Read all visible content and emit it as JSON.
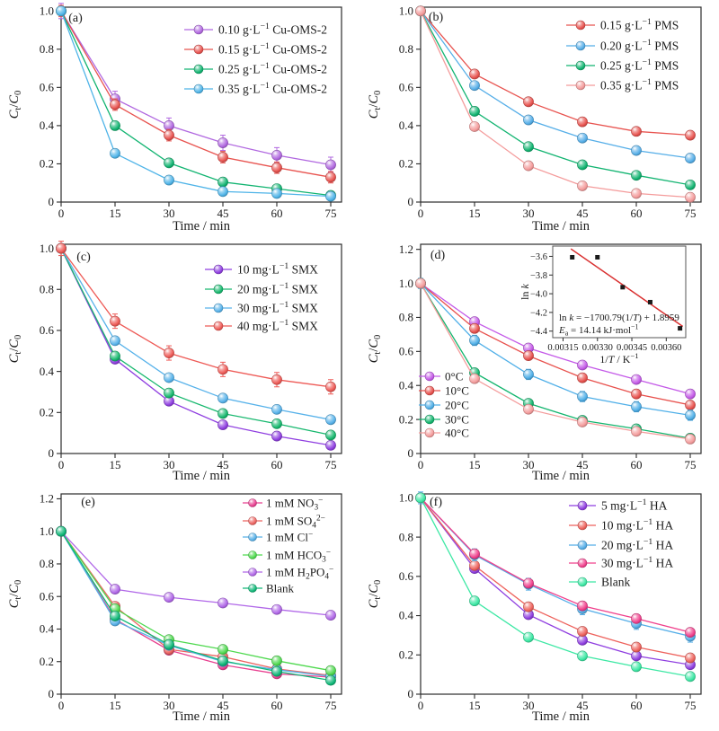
{
  "figure": {
    "background": "#ffffff",
    "axis_color": "#2b2b2b",
    "text_color": "#1a1a1a"
  },
  "chart_data": [
    {
      "type": "line",
      "panel_label": "(a)",
      "xlabel": "Time / min",
      "ylabel": "*C*_{t}/*C*_{0}",
      "x": [
        0,
        15,
        30,
        45,
        60,
        75
      ],
      "xticks": [
        0,
        15,
        30,
        45,
        60,
        75
      ],
      "yticks": [
        0,
        0.2,
        0.4,
        0.6,
        0.8,
        1.0
      ],
      "xlim": [
        0,
        78
      ],
      "ylim": [
        0,
        1.02
      ],
      "grid": false,
      "legend_position": "top-right",
      "series": [
        {
          "name": "0.10 g·L^{−1} Cu-OMS-2",
          "color": "#b168e0",
          "err": 0.04,
          "values": [
            1.0,
            0.54,
            0.4,
            0.31,
            0.245,
            0.195
          ]
        },
        {
          "name": "0.15 g·L^{−1} Cu-OMS-2",
          "color": "#e8534f",
          "err": 0.03,
          "values": [
            1.0,
            0.51,
            0.35,
            0.235,
            0.18,
            0.13
          ]
        },
        {
          "name": "0.25 g·L^{−1} Cu-OMS-2",
          "color": "#12b471",
          "err": 0.015,
          "values": [
            1.0,
            0.4,
            0.205,
            0.105,
            0.07,
            0.035
          ]
        },
        {
          "name": "0.35 g·L^{−1} Cu-OMS-2",
          "color": "#4fb4e8",
          "err": 0.015,
          "values": [
            1.0,
            0.255,
            0.115,
            0.055,
            0.045,
            0.03
          ]
        }
      ]
    },
    {
      "type": "line",
      "panel_label": "(b)",
      "xlabel": "Time / min",
      "ylabel": "*C*_{t}/*C*_{0}",
      "x": [
        0,
        15,
        30,
        45,
        60,
        75
      ],
      "xticks": [
        0,
        15,
        30,
        45,
        60,
        75
      ],
      "yticks": [
        0,
        0.2,
        0.4,
        0.6,
        0.8,
        1.0
      ],
      "xlim": [
        0,
        78
      ],
      "ylim": [
        0,
        1.02
      ],
      "grid": false,
      "legend_position": "top-right",
      "series": [
        {
          "name": "0.15 g·L^{−1} PMS",
          "color": "#e8534f",
          "err": 0.02,
          "values": [
            1.0,
            0.67,
            0.525,
            0.42,
            0.37,
            0.35
          ]
        },
        {
          "name": "0.20 g·L^{−1} PMS",
          "color": "#55aee8",
          "err": 0.015,
          "values": [
            1.0,
            0.61,
            0.43,
            0.335,
            0.27,
            0.23
          ]
        },
        {
          "name": "0.25 g·L^{−1} PMS",
          "color": "#12b471",
          "err": 0.015,
          "values": [
            1.0,
            0.475,
            0.29,
            0.195,
            0.14,
            0.09
          ]
        },
        {
          "name": "0.35 g·L^{−1} PMS",
          "color": "#f49b9b",
          "err": 0.015,
          "values": [
            1.0,
            0.395,
            0.19,
            0.085,
            0.045,
            0.025
          ]
        }
      ]
    },
    {
      "type": "line",
      "panel_label": "(c)",
      "xlabel": "Time / min",
      "ylabel": "*C*_{t}/*C*_{0}",
      "x": [
        0,
        15,
        30,
        45,
        60,
        75
      ],
      "xticks": [
        0,
        15,
        30,
        45,
        60,
        75
      ],
      "yticks": [
        0,
        0.2,
        0.4,
        0.6,
        0.8,
        1.0
      ],
      "xlim": [
        0,
        78
      ],
      "ylim": [
        0,
        1.02
      ],
      "grid": false,
      "legend_position": "top-right",
      "series": [
        {
          "name": "10 mg·L^{−1} SMX",
          "color": "#8f3ee0",
          "err": 0.015,
          "values": [
            1.0,
            0.46,
            0.255,
            0.14,
            0.085,
            0.04
          ]
        },
        {
          "name": "20 mg·L^{−1} SMX",
          "color": "#17b86e",
          "err": 0.015,
          "values": [
            1.0,
            0.475,
            0.295,
            0.195,
            0.145,
            0.09
          ]
        },
        {
          "name": "30 mg·L^{−1} SMX",
          "color": "#57b2ea",
          "err": 0.015,
          "values": [
            1.0,
            0.55,
            0.37,
            0.27,
            0.215,
            0.165
          ]
        },
        {
          "name": "40 mg·L^{−1} SMX",
          "color": "#ee5a56",
          "err": 0.035,
          "values": [
            1.0,
            0.645,
            0.49,
            0.41,
            0.36,
            0.325
          ]
        }
      ]
    },
    {
      "type": "line",
      "panel_label": "(d)",
      "xlabel": "Time / min",
      "ylabel": "*C*_{t}/*C*_{0}",
      "x": [
        0,
        15,
        30,
        45,
        60,
        75
      ],
      "xticks": [
        0,
        15,
        30,
        45,
        60,
        75
      ],
      "yticks": [
        0,
        0.2,
        0.4,
        0.6,
        0.8,
        1.0,
        1.2
      ],
      "xlim": [
        0,
        78
      ],
      "ylim": [
        0,
        1.23
      ],
      "grid": false,
      "legend_position": "bottom-left",
      "series": [
        {
          "name": "0°C",
          "color": "#c45ae8",
          "err": 0.02,
          "values": [
            1.0,
            0.775,
            0.62,
            0.52,
            0.435,
            0.35
          ]
        },
        {
          "name": "10°C",
          "color": "#e8514d",
          "err": 0.025,
          "values": [
            1.0,
            0.735,
            0.575,
            0.445,
            0.35,
            0.285
          ]
        },
        {
          "name": "20°C",
          "color": "#4fafe8",
          "err": 0.03,
          "values": [
            1.0,
            0.665,
            0.465,
            0.335,
            0.275,
            0.225
          ]
        },
        {
          "name": "30°C",
          "color": "#13b56e",
          "err": 0.015,
          "values": [
            1.0,
            0.475,
            0.295,
            0.195,
            0.145,
            0.09
          ]
        },
        {
          "name": "40°C",
          "color": "#f49c9c",
          "err": 0.02,
          "values": [
            1.0,
            0.44,
            0.26,
            0.185,
            0.13,
            0.085
          ]
        }
      ],
      "inset": {
        "type": "scatter",
        "xlabel": "1/*T* / K^{−1}",
        "ylabel": "ln *k*",
        "x": [
          0.00319,
          0.0033,
          0.00341,
          0.00353,
          0.00366
        ],
        "y": [
          -3.61,
          -3.61,
          -3.93,
          -4.09,
          -4.37
        ],
        "xticks": [
          0.00315,
          0.0033,
          0.00345,
          0.0036
        ],
        "yticks": [
          -3.6,
          -3.8,
          -4.0,
          -4.2,
          -4.4
        ],
        "xlim": [
          0.003105,
          0.003685
        ],
        "ylim": [
          -4.47,
          -3.49
        ],
        "point_color": "#1a1a1a",
        "fit_line": {
          "slope": -1700.79,
          "intercept": 1.8959,
          "color": "#d93030"
        },
        "annotation_line1": "ln *k* = −1700.79(1/*T*) + 1.8959",
        "annotation_line2": "*E*_{a} = 14.14 kJ·mol^{−1}"
      }
    },
    {
      "type": "line",
      "panel_label": "(e)",
      "xlabel": "Time / min",
      "ylabel": "*C*_{t}/*C*_{0}",
      "x": [
        0,
        15,
        30,
        45,
        60,
        75
      ],
      "xticks": [
        0,
        15,
        30,
        45,
        60,
        75
      ],
      "yticks": [
        0,
        0.2,
        0.4,
        0.6,
        0.8,
        1.0,
        1.2
      ],
      "xlim": [
        0,
        78
      ],
      "ylim": [
        0,
        1.23
      ],
      "grid": false,
      "legend_position": "top-right",
      "series": [
        {
          "name": "1 mM NO_{3}^{−}",
          "color": "#e84090",
          "err": 0.015,
          "values": [
            1.0,
            0.46,
            0.27,
            0.18,
            0.125,
            0.105
          ]
        },
        {
          "name": "1 mM SO_{4}^{2−}",
          "color": "#ec6360",
          "err": 0.015,
          "values": [
            1.0,
            0.54,
            0.275,
            0.23,
            0.155,
            0.115
          ]
        },
        {
          "name": "1 mM Cl^{−}",
          "color": "#57b0e8",
          "err": 0.015,
          "values": [
            1.0,
            0.45,
            0.3,
            0.2,
            0.15,
            0.11
          ]
        },
        {
          "name": "1 mM HCO_{3}^{−}",
          "color": "#4fd94f",
          "err": 0.015,
          "values": [
            1.0,
            0.525,
            0.335,
            0.275,
            0.205,
            0.145
          ]
        },
        {
          "name": "1 mM H_{2}PO_{4}^{−}",
          "color": "#b168e8",
          "err": 0.015,
          "values": [
            1.0,
            0.645,
            0.595,
            0.56,
            0.52,
            0.485
          ]
        },
        {
          "name": "Blank",
          "color": "#10b878",
          "err": 0.015,
          "values": [
            1.0,
            0.48,
            0.305,
            0.205,
            0.14,
            0.085
          ]
        }
      ]
    },
    {
      "type": "line",
      "panel_label": "(f)",
      "xlabel": "Time / min",
      "ylabel": "*C*_{t}/*C*_{0}",
      "x": [
        0,
        15,
        30,
        45,
        60,
        75
      ],
      "xticks": [
        0,
        15,
        30,
        45,
        60,
        75
      ],
      "yticks": [
        0,
        0.2,
        0.4,
        0.6,
        0.8,
        1.0
      ],
      "xlim": [
        0,
        78
      ],
      "ylim": [
        0,
        1.02
      ],
      "grid": false,
      "legend_position": "top-right",
      "series": [
        {
          "name": "5 mg·L^{−1} HA",
          "color": "#8f3ee0",
          "err": 0.015,
          "values": [
            1.0,
            0.64,
            0.405,
            0.275,
            0.195,
            0.15
          ]
        },
        {
          "name": "10 mg·L^{−1} HA",
          "color": "#ee625c",
          "err": 0.015,
          "values": [
            1.0,
            0.655,
            0.445,
            0.32,
            0.24,
            0.185
          ]
        },
        {
          "name": "20 mg·L^{−1} HA",
          "color": "#55aee8",
          "err": 0.03,
          "values": [
            1.0,
            0.71,
            0.56,
            0.435,
            0.36,
            0.295
          ]
        },
        {
          "name": "30 mg·L^{−1} HA",
          "color": "#f0408c",
          "err": 0.015,
          "values": [
            1.0,
            0.715,
            0.565,
            0.45,
            0.385,
            0.315
          ]
        },
        {
          "name": "Blank",
          "color": "#3ce8a4",
          "err": 0.015,
          "values": [
            1.0,
            0.475,
            0.29,
            0.195,
            0.14,
            0.09
          ]
        }
      ]
    }
  ]
}
